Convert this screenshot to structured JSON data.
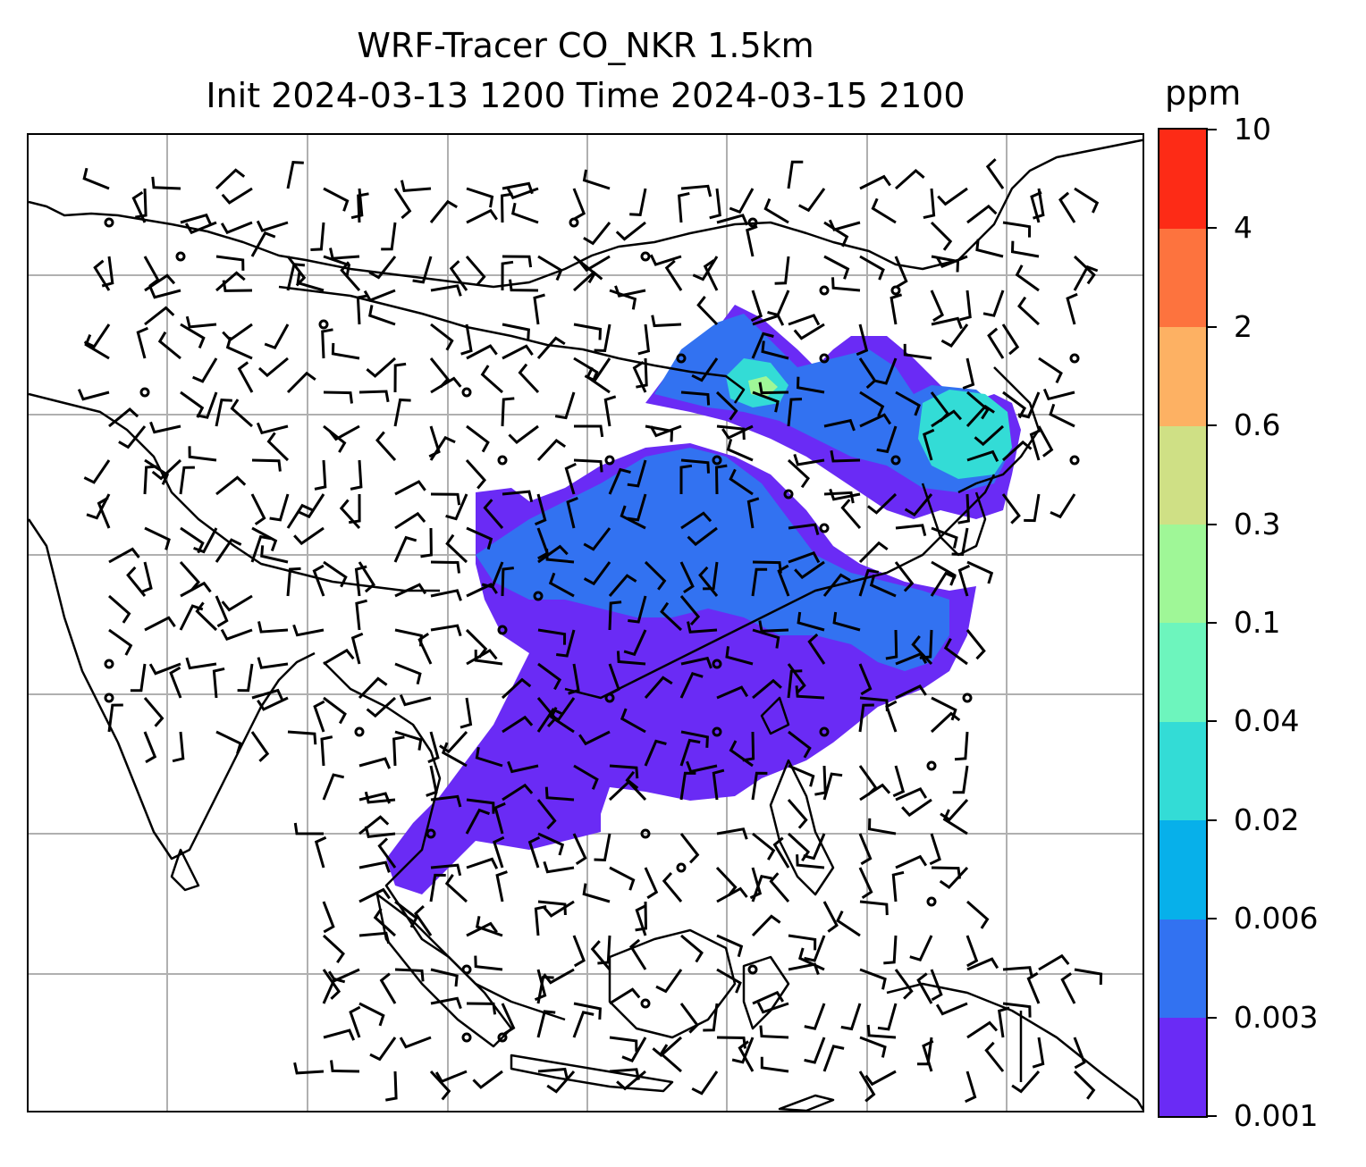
{
  "title": {
    "line1": "WRF-Tracer CO_NKR 1.5km",
    "line2": "Init 2024-03-13 1200 Time 2024-03-15 2100"
  },
  "colorbar": {
    "unit": "ppm",
    "ticks": [
      "0.001",
      "0.003",
      "0.006",
      "0.02",
      "0.04",
      "0.1",
      "0.3",
      "0.6",
      "2",
      "4",
      "10"
    ],
    "colors": [
      "#6a2bf5",
      "#3272f1",
      "#07b0ea",
      "#33dcd6",
      "#6df5bd",
      "#9ff797",
      "#cfe085",
      "#fdb163",
      "#fd733e",
      "#fd2b16"
    ]
  },
  "map": {
    "gridlines": true,
    "plume_colors": {
      "low": "#6a2bf5",
      "mid": "#3272f1",
      "high": "#33dcd6",
      "peak": "#9ff797"
    }
  }
}
